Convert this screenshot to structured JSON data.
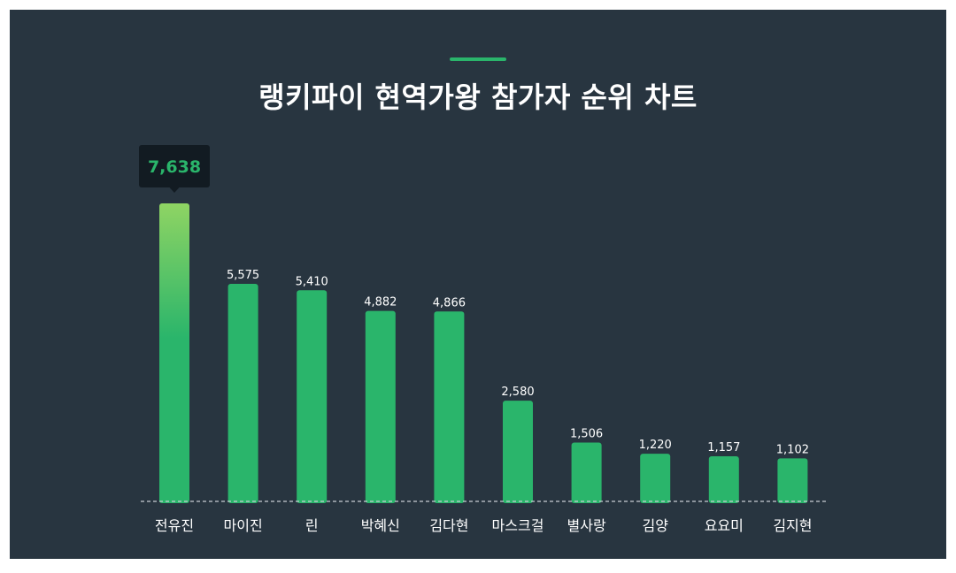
{
  "title": "랭키파이 현역가왕 참가자 순위 차트",
  "colors": {
    "background": "#283540",
    "bar": "#2ab56b",
    "bar_top_gradient": "#8fd463",
    "tooltip_bg": "#121b22",
    "tooltip_text": "#2ab56b",
    "label_text": "#ffffff",
    "baseline": "#c8ced3"
  },
  "chart_data": {
    "type": "bar",
    "categories": [
      "전유진",
      "마이진",
      "린",
      "박혜신",
      "김다현",
      "마스크걸",
      "별사랑",
      "김양",
      "요요미",
      "김지현"
    ],
    "values": [
      7638,
      5575,
      5410,
      4882,
      4866,
      2580,
      1506,
      1220,
      1157,
      1102
    ],
    "value_labels": [
      "7,638",
      "5,575",
      "5,410",
      "4,882",
      "4,866",
      "2,580",
      "1,506",
      "1,220",
      "1,157",
      "1,102"
    ],
    "highlight_index": 0,
    "ylim": [
      0,
      7638
    ],
    "grid": false,
    "baseline": "dashed"
  }
}
